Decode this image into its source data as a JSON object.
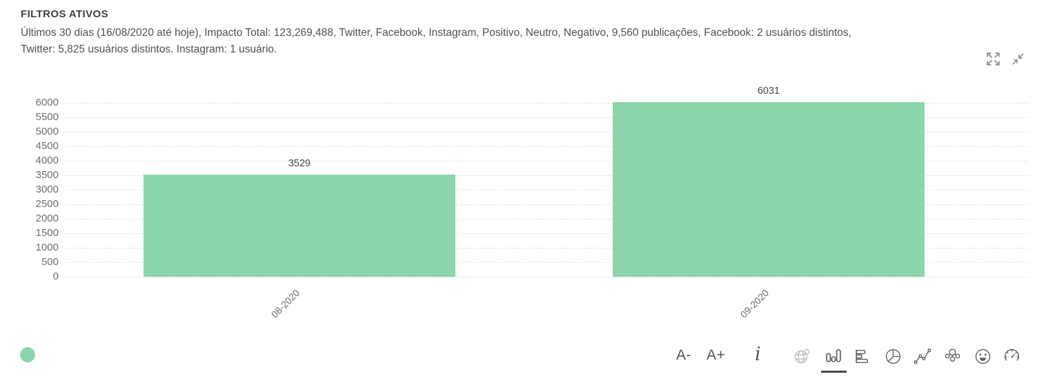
{
  "header": {
    "title": "FILTROS ATIVOS",
    "description_line1": "Últimos 30 dias (16/08/2020 até hoje), Impacto Total: 123,269,488, Twitter, Facebook, Instagram, Positivo, Neutro, Negativo, 9,560 publicações, Facebook: 2 usuários distintos,",
    "description_line2": "Twitter: 5,825 usuários distintos. Instagram: 1 usuário."
  },
  "window_controls": {
    "icons": [
      "expand-icon",
      "collapse-icon"
    ]
  },
  "chart_data": {
    "type": "bar",
    "title": "",
    "xlabel": "",
    "ylabel": "",
    "categories": [
      "08-2020",
      "09-2020"
    ],
    "values": [
      3529,
      6031
    ],
    "color": "#8cd4ac",
    "ylim": [
      0,
      6000
    ],
    "ytick_step": 500,
    "grid": "horizontal-dashed",
    "value_labels_shown": true,
    "x_label_rotation_deg": -45,
    "legend": {
      "dot_color": "#8cd4ac",
      "position": "bottom-left"
    }
  },
  "toolbar": {
    "font_decrease_label": "A-",
    "font_increase_label": "A+",
    "icons": [
      "info-icon",
      "globe-icon",
      "vertical-bar-chart-icon",
      "horizontal-bar-chart-icon",
      "pie-chart-icon",
      "line-chart-icon",
      "network-graph-icon",
      "smiley-icon",
      "gauge-icon"
    ],
    "selected_chart_type": "vertical-bar-chart"
  },
  "colors": {
    "bar_green": "#8cd4ac",
    "grid_line": "#e2e2e2",
    "axis_label": "#6e6e6e",
    "body_text": "#4f4f4f",
    "icon_gray": "#5a5a5a",
    "disabled_icon_gray": "#b8b8b8"
  }
}
